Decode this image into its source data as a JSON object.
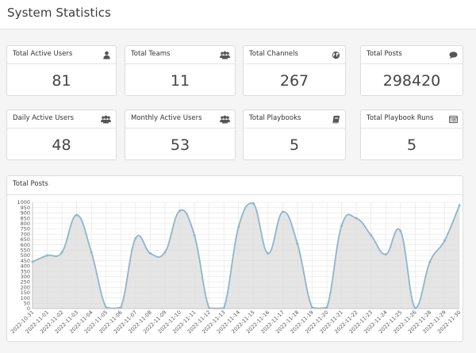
{
  "page": {
    "title": "System Statistics"
  },
  "cards": [
    {
      "title": "Total Active Users",
      "value": "81",
      "icon": "user-icon"
    },
    {
      "title": "Total Teams",
      "value": "11",
      "icon": "users-icon"
    },
    {
      "title": "Total Channels",
      "value": "267",
      "icon": "globe-icon"
    },
    {
      "title": "Total Posts",
      "value": "298420",
      "icon": "comment-icon"
    },
    {
      "title": "Daily Active Users",
      "value": "48",
      "icon": "users-icon"
    },
    {
      "title": "Monthly Active Users",
      "value": "53",
      "icon": "users-icon"
    },
    {
      "title": "Total Playbooks",
      "value": "5",
      "icon": "book-icon"
    },
    {
      "title": "Total Playbook Runs",
      "value": "5",
      "icon": "list-alt-icon"
    }
  ],
  "chart_card": {
    "title": "Total Posts"
  },
  "chart_data": {
    "type": "area",
    "title": "Total Posts",
    "xlabel": "",
    "ylabel": "",
    "ylim": [
      0,
      1000
    ],
    "yticks": [
      0,
      50,
      100,
      150,
      200,
      250,
      300,
      350,
      400,
      450,
      500,
      550,
      600,
      650,
      700,
      750,
      800,
      850,
      900,
      950,
      1000
    ],
    "grid": true,
    "x": [
      "2022-10-31",
      "2022-11-01",
      "2022-11-02",
      "2022-11-03",
      "2022-11-04",
      "2022-11-05",
      "2022-11-06",
      "2022-11-07",
      "2022-11-08",
      "2022-11-09",
      "2022-11-10",
      "2022-11-11",
      "2022-11-12",
      "2022-11-13",
      "2022-11-14",
      "2022-11-15",
      "2022-11-16",
      "2022-11-17",
      "2022-11-18",
      "2022-11-19",
      "2022-11-20",
      "2022-11-21",
      "2022-11-22",
      "2022-11-23",
      "2022-11-24",
      "2022-11-25",
      "2022-11-26",
      "2022-11-28",
      "2022-11-29",
      "2022-11-30"
    ],
    "series": [
      {
        "values": [
          440,
          500,
          530,
          880,
          530,
          10,
          10,
          660,
          520,
          530,
          920,
          690,
          5,
          5,
          770,
          990,
          520,
          910,
          610,
          10,
          10,
          780,
          850,
          690,
          510,
          730,
          5,
          440,
          640,
          970
        ]
      }
    ],
    "colors": {
      "line": "#8fb5cc",
      "fill": "#dcdcdc",
      "point": "#8fb5cc",
      "grid": "#e4e4e4",
      "axis": "#bbbbbb"
    }
  }
}
